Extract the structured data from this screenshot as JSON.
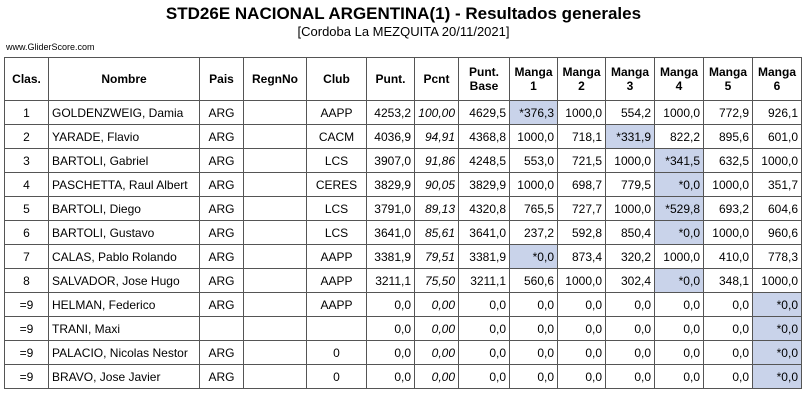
{
  "page": {
    "title": "STD26E NACIONAL ARGENTINA(1) - Resultados generales",
    "subtitle": "[Cordoba La MEZQUITA 20/11/2021]",
    "site": "www.GliderScore.com"
  },
  "colors": {
    "highlight": "#c9d3ea",
    "border": "#555555"
  },
  "table": {
    "headers": [
      "Clas.",
      "Nombre",
      "Pais",
      "RegnNo",
      "Club",
      "Punt.",
      "Pcnt",
      "Punt. Base",
      "Manga 1",
      "Manga 2",
      "Manga 3",
      "Manga 4",
      "Manga 5",
      "Manga 6"
    ],
    "rows": [
      {
        "clas": "1",
        "nombre": "GOLDENZWEIG, Damia",
        "pais": "ARG",
        "regn": "",
        "club": "AAPP",
        "punt": "4253,2",
        "pcnt": "100,00",
        "base": "4629,5",
        "m": [
          "*376,3",
          "1000,0",
          "554,2",
          "1000,0",
          "772,9",
          "926,1"
        ],
        "hl": [
          0
        ]
      },
      {
        "clas": "2",
        "nombre": "YARADE, Flavio",
        "pais": "ARG",
        "regn": "",
        "club": "CACM",
        "punt": "4036,9",
        "pcnt": "94,91",
        "base": "4368,8",
        "m": [
          "1000,0",
          "718,1",
          "*331,9",
          "822,2",
          "895,6",
          "601,0"
        ],
        "hl": [
          2
        ]
      },
      {
        "clas": "3",
        "nombre": "BARTOLI, Gabriel",
        "pais": "ARG",
        "regn": "",
        "club": "LCS",
        "punt": "3907,0",
        "pcnt": "91,86",
        "base": "4248,5",
        "m": [
          "553,0",
          "721,5",
          "1000,0",
          "*341,5",
          "632,5",
          "1000,0"
        ],
        "hl": [
          3
        ]
      },
      {
        "clas": "4",
        "nombre": "PASCHETTA, Raul Albert",
        "pais": "ARG",
        "regn": "",
        "club": "CERES",
        "punt": "3829,9",
        "pcnt": "90,05",
        "base": "3829,9",
        "m": [
          "1000,0",
          "698,7",
          "779,5",
          "*0,0",
          "1000,0",
          "351,7"
        ],
        "hl": [
          3
        ]
      },
      {
        "clas": "5",
        "nombre": "BARTOLI, Diego",
        "pais": "ARG",
        "regn": "",
        "club": "LCS",
        "punt": "3791,0",
        "pcnt": "89,13",
        "base": "4320,8",
        "m": [
          "765,5",
          "727,7",
          "1000,0",
          "*529,8",
          "693,2",
          "604,6"
        ],
        "hl": [
          3
        ]
      },
      {
        "clas": "6",
        "nombre": "BARTOLI, Gustavo",
        "pais": "ARG",
        "regn": "",
        "club": "LCS",
        "punt": "3641,0",
        "pcnt": "85,61",
        "base": "3641,0",
        "m": [
          "237,2",
          "592,8",
          "850,4",
          "*0,0",
          "1000,0",
          "960,6"
        ],
        "hl": [
          3
        ]
      },
      {
        "clas": "7",
        "nombre": "CALAS, Pablo Rolando",
        "pais": "ARG",
        "regn": "",
        "club": "AAPP",
        "punt": "3381,9",
        "pcnt": "79,51",
        "base": "3381,9",
        "m": [
          "*0,0",
          "873,4",
          "320,2",
          "1000,0",
          "410,0",
          "778,3"
        ],
        "hl": [
          0
        ]
      },
      {
        "clas": "8",
        "nombre": "SALVADOR, Jose Hugo",
        "pais": "ARG",
        "regn": "",
        "club": "AAPP",
        "punt": "3211,1",
        "pcnt": "75,50",
        "base": "3211,1",
        "m": [
          "560,6",
          "1000,0",
          "302,4",
          "*0,0",
          "348,1",
          "1000,0"
        ],
        "hl": [
          3
        ]
      },
      {
        "clas": "=9",
        "nombre": "HELMAN, Federico",
        "pais": "ARG",
        "regn": "",
        "club": "AAPP",
        "punt": "0,0",
        "pcnt": "0,00",
        "base": "0,0",
        "m": [
          "0,0",
          "0,0",
          "0,0",
          "0,0",
          "0,0",
          "*0,0"
        ],
        "hl": [
          5
        ]
      },
      {
        "clas": "=9",
        "nombre": "TRANI, Maxi",
        "pais": "",
        "regn": "",
        "club": "",
        "punt": "0,0",
        "pcnt": "0,00",
        "base": "0,0",
        "m": [
          "0,0",
          "0,0",
          "0,0",
          "0,0",
          "0,0",
          "*0,0"
        ],
        "hl": [
          5
        ]
      },
      {
        "clas": "=9",
        "nombre": "PALACIO, Nicolas Nestor",
        "pais": "ARG",
        "regn": "",
        "club": "0",
        "punt": "0,0",
        "pcnt": "0,00",
        "base": "0,0",
        "m": [
          "0,0",
          "0,0",
          "0,0",
          "0,0",
          "0,0",
          "*0,0"
        ],
        "hl": [
          5
        ]
      },
      {
        "clas": "=9",
        "nombre": "BRAVO, Jose Javier",
        "pais": "ARG",
        "regn": "",
        "club": "0",
        "punt": "0,0",
        "pcnt": "0,00",
        "base": "0,0",
        "m": [
          "0,0",
          "0,0",
          "0,0",
          "0,0",
          "0,0",
          "*0,0"
        ],
        "hl": [
          5
        ]
      }
    ]
  }
}
